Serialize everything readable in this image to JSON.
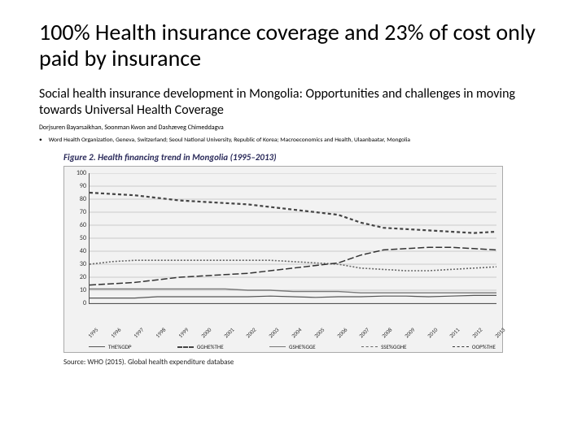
{
  "slide": {
    "title": "100% Health insurance coverage and 23% of cost only paid by insurance",
    "subtitle": "Social health insurance development in Mongolia: Opportunities and challenges in moving towards Universal Health Coverage",
    "authors": "Dorjsuren Bayarsaikhan, Soonman Kwon and Dashzeveg Chimeddagva",
    "affiliation_bullet": "•",
    "affiliation": "Word Health Organization, Geneva, Switzerland; Seoul National University, Republic of Korea; Macroeconomics and Health, Ulaanbaatar, Mongolia"
  },
  "figure": {
    "caption": "Figure 2. Health financing trend in Mongolia (1995–2013)",
    "source": "Source: WHO (2015). Global health expenditure database",
    "chart": {
      "type": "line",
      "background_color": "#f2f2f2",
      "grid_color": "#bbbbbb",
      "axis_color": "#555555",
      "ylim": [
        0,
        100
      ],
      "ytick_step": 10,
      "yticks": [
        0,
        10,
        20,
        30,
        40,
        50,
        60,
        70,
        80,
        90,
        100
      ],
      "x_categories": [
        "1995",
        "1996",
        "1997",
        "1998",
        "1999",
        "2000",
        "2001",
        "2002",
        "2003",
        "2004",
        "2005",
        "2006",
        "2007",
        "2008",
        "2009",
        "2010",
        "2011",
        "2012",
        "2013"
      ],
      "series": [
        {
          "name": "THE%GDP",
          "color": "#555555",
          "dash": "none",
          "width": 1.2,
          "values": [
            4,
            4,
            4,
            5,
            5,
            5,
            5,
            5,
            5.5,
            5,
            4.5,
            5,
            5,
            5.5,
            5.5,
            5,
            5.5,
            6,
            6
          ]
        },
        {
          "name": "GGHE%THE",
          "color": "#444444",
          "dash": "4 3",
          "width": 2.2,
          "values": [
            85,
            84,
            83,
            81,
            79,
            78,
            77,
            76,
            74,
            72,
            70,
            68,
            62,
            58,
            57,
            56,
            55,
            54,
            55
          ]
        },
        {
          "name": "GSHE%GGE",
          "color": "#777777",
          "dash": "none",
          "width": 1.4,
          "values": [
            11,
            11,
            11,
            11,
            11,
            11,
            11,
            10,
            10,
            9,
            9,
            9,
            8,
            8,
            8,
            8,
            8,
            8,
            8
          ]
        },
        {
          "name": "SSE%GGHE",
          "color": "#666666",
          "dash": "2 2",
          "width": 1.6,
          "values": [
            30,
            32,
            33,
            33,
            33,
            33,
            33,
            33,
            33,
            32,
            31,
            30,
            27,
            26,
            25,
            25,
            26,
            27,
            28
          ]
        },
        {
          "name": "OOP%THE",
          "color": "#333333",
          "dash": "8 3",
          "width": 1.5,
          "values": [
            14,
            15,
            16,
            18,
            20,
            21,
            22,
            23,
            25,
            27,
            29,
            31,
            37,
            41,
            42,
            43,
            43,
            42,
            41
          ]
        }
      ],
      "legend_labels": [
        "THE%GDP",
        "GGHE%THE",
        "GSHE%GGE",
        "SSE%GGHE",
        "OOP%THE"
      ],
      "tick_fontsize": 8,
      "legend_fontsize": 7
    }
  }
}
